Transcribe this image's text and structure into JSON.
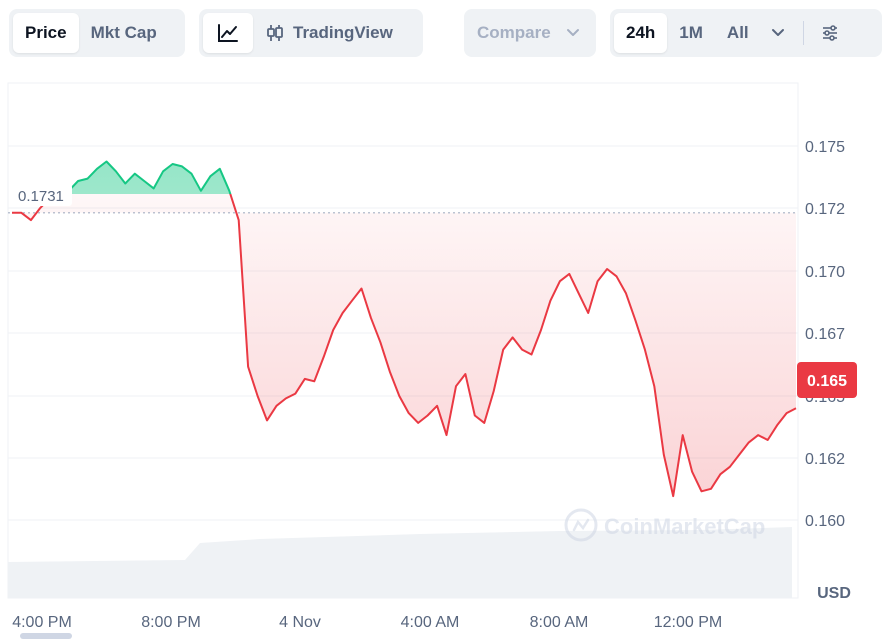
{
  "toolbar": {
    "price_tab": "Price",
    "mktcap_tab": "Mkt Cap",
    "line_chart_icon": "line-chart-icon",
    "tradingview_icon": "candlestick-icon",
    "tradingview_label": "TradingView",
    "compare_label": "Compare",
    "range_24h": "24h",
    "range_1m": "1M",
    "range_all": "All",
    "range_more_icon": "chevron-down-icon",
    "settings_icon": "sliders-icon"
  },
  "chart": {
    "open_price_label": "0.1731",
    "current_price_label": "0.165",
    "currency_label": "USD",
    "watermark": "CoinMarketCap",
    "colors": {
      "up": "#16c784",
      "down": "#ea3943",
      "grid": "#eff2f5"
    }
  },
  "chart_data": {
    "type": "area",
    "x_ticks": [
      "4:00 PM",
      "8:00 PM",
      "4 Nov",
      "4:00 AM",
      "8:00 AM",
      "12:00 PM"
    ],
    "y_ticks": [
      "0.175",
      "0.172",
      "0.170",
      "0.167",
      "0.165",
      "0.162",
      "0.160"
    ],
    "ylim": [
      0.1595,
      0.1778
    ],
    "baseline": 0.1731,
    "last_value": 0.165,
    "series": [
      {
        "values": [
          0.1731,
          0.1731,
          0.1728,
          0.1733,
          0.1737,
          0.1735,
          0.174,
          0.1744,
          0.1745,
          0.1749,
          0.1752,
          0.1748,
          0.1743,
          0.1747,
          0.1744,
          0.1741,
          0.1748,
          0.1751,
          0.175,
          0.1747,
          0.174,
          0.1746,
          0.1749,
          0.174,
          0.1728,
          0.1668,
          0.1656,
          0.1646,
          0.1652,
          0.1655,
          0.1657,
          0.1663,
          0.1662,
          0.1672,
          0.1683,
          0.169,
          0.1695,
          0.17,
          0.1688,
          0.1678,
          0.1666,
          0.1656,
          0.1649,
          0.1645,
          0.1648,
          0.1652,
          0.164,
          0.166,
          0.1665,
          0.1648,
          0.1645,
          0.1658,
          0.1675,
          0.168,
          0.1675,
          0.1673,
          0.1683,
          0.1695,
          0.1703,
          0.1706,
          0.1698,
          0.169,
          0.1703,
          0.1708,
          0.1705,
          0.1698,
          0.1687,
          0.1675,
          0.166,
          0.1632,
          0.1615,
          0.164,
          0.1625,
          0.1617,
          0.1618,
          0.1624,
          0.1627,
          0.1632,
          0.1637,
          0.164,
          0.1638,
          0.1644,
          0.1649,
          0.1651
        ]
      }
    ]
  }
}
